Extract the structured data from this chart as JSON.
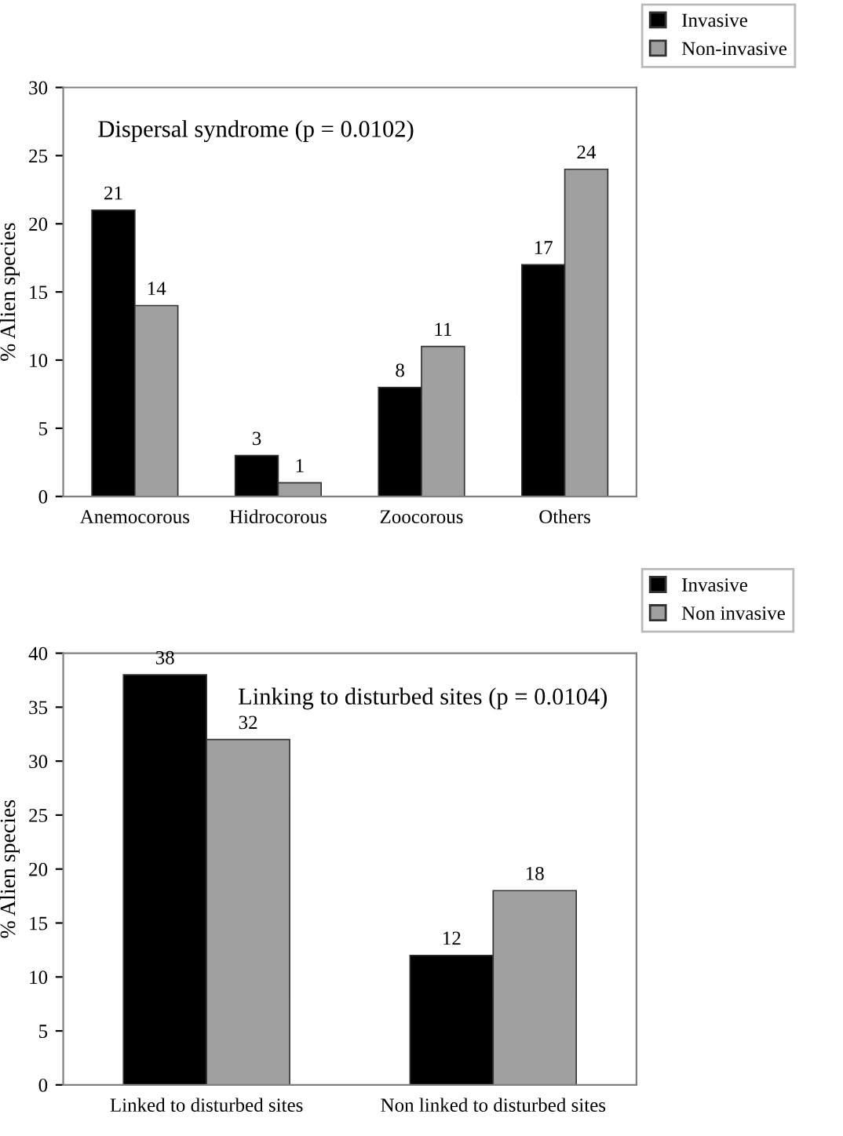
{
  "chart_data": [
    {
      "type": "bar",
      "title": "Dispersal syndrome (p = 0.0102)",
      "ylabel": "% Alien species",
      "categories": [
        "Anemocorous",
        "Hidrocorous",
        "Zoocorous",
        "Others"
      ],
      "series": [
        {
          "name": "Invasive",
          "color": "#000000",
          "values": [
            21,
            3,
            8,
            17
          ]
        },
        {
          "name": "Non-invasive",
          "color": "#a0a0a0",
          "values": [
            14,
            1,
            11,
            24
          ]
        }
      ],
      "ylim": [
        0,
        30
      ],
      "yticks": [
        0,
        5,
        10,
        15,
        20,
        25,
        30
      ],
      "data_labels": true,
      "legend": "top right",
      "grid": false
    },
    {
      "type": "bar",
      "title": "Linking to disturbed sites (p = 0.0104)",
      "ylabel": "% Alien species",
      "categories": [
        "Linked to disturbed sites",
        "Non linked to disturbed sites"
      ],
      "series": [
        {
          "name": "Invasive",
          "color": "#000000",
          "values": [
            38,
            12
          ]
        },
        {
          "name": "Non invasive",
          "color": "#a0a0a0",
          "values": [
            32,
            18
          ]
        }
      ],
      "ylim": [
        0,
        40
      ],
      "yticks": [
        0,
        5,
        10,
        15,
        20,
        25,
        30,
        35,
        40
      ],
      "data_labels": true,
      "legend": "top right",
      "grid": false
    }
  ]
}
